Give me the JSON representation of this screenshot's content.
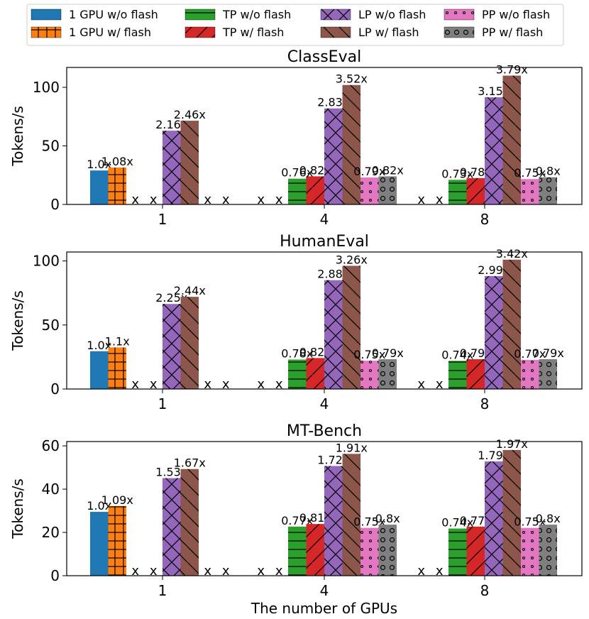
{
  "legend": {
    "items": [
      {
        "key": "gpu1_noflash",
        "label": "1 GPU w/o flash"
      },
      {
        "key": "gpu1_flash",
        "label": "1 GPU w/ flash"
      },
      {
        "key": "tp_noflash",
        "label": "TP w/o flash"
      },
      {
        "key": "tp_flash",
        "label": "TP w/ flash"
      },
      {
        "key": "lp_noflash",
        "label": "LP w/o flash"
      },
      {
        "key": "lp_flash",
        "label": "LP w/ flash"
      },
      {
        "key": "pp_noflash",
        "label": "PP w/o flash"
      },
      {
        "key": "pp_flash",
        "label": "PP w/ flash"
      }
    ]
  },
  "colors": {
    "gpu1_noflash": "#1f77b4",
    "gpu1_flash": "#ff7f0e",
    "tp_noflash": "#2ca02c",
    "tp_flash": "#d62728",
    "lp_noflash": "#9467bd",
    "lp_flash": "#8c564b",
    "pp_noflash": "#e377c2",
    "pp_flash": "#7f7f7f"
  },
  "patterns": {
    "gpu1_noflash": "none",
    "gpu1_flash": "plus-grid",
    "tp_noflash": "horizontal-lines",
    "tp_flash": "forward-slash",
    "lp_noflash": "crosshatch",
    "lp_flash": "back-slash",
    "pp_noflash": "small-dots",
    "pp_flash": "large-circles"
  },
  "missing_marker": "x",
  "chart_data": [
    {
      "type": "bar",
      "title": "ClassEval",
      "ylabel": "Tokens/s",
      "xlabel": "",
      "categories": [
        "1",
        "4",
        "8"
      ],
      "ylim": [
        0,
        117
      ],
      "yticks": [
        0,
        50,
        100
      ],
      "series": [
        {
          "key": "gpu1_noflash",
          "name": "1 GPU w/o flash",
          "values": [
            29,
            null,
            null
          ],
          "labels": [
            "1.0x",
            null,
            null
          ]
        },
        {
          "key": "gpu1_flash",
          "name": "1 GPU w/ flash",
          "values": [
            31.5,
            null,
            null
          ],
          "labels": [
            "1.08x",
            null,
            null
          ]
        },
        {
          "key": "tp_noflash",
          "name": "TP w/o flash",
          "values": [
            null,
            22,
            21
          ],
          "labels": [
            null,
            "0.76x",
            "0.73x"
          ]
        },
        {
          "key": "tp_flash",
          "name": "TP w/ flash",
          "values": [
            null,
            24,
            22.5
          ],
          "labels": [
            null,
            "0.82x",
            "0.78x"
          ]
        },
        {
          "key": "lp_noflash",
          "name": "LP w/o flash",
          "values": [
            63,
            82,
            91.5
          ],
          "labels": [
            "2.16x",
            "2.83x",
            "3.15x"
          ]
        },
        {
          "key": "lp_flash",
          "name": "LP w/ flash",
          "values": [
            71.5,
            102,
            110
          ],
          "labels": [
            "2.46x",
            "3.52x",
            "3.79x"
          ]
        },
        {
          "key": "pp_noflash",
          "name": "PP w/o flash",
          "values": [
            null,
            23,
            21.7
          ],
          "labels": [
            null,
            "0.79x",
            "0.75x"
          ]
        },
        {
          "key": "pp_flash",
          "name": "PP w/ flash",
          "values": [
            null,
            24,
            23.2
          ],
          "labels": [
            null,
            "0.82x",
            "0.8x"
          ]
        }
      ]
    },
    {
      "type": "bar",
      "title": "HumanEval",
      "ylabel": "Tokens/s",
      "xlabel": "",
      "categories": [
        "1",
        "4",
        "8"
      ],
      "ylim": [
        0,
        107
      ],
      "yticks": [
        0,
        50,
        100
      ],
      "series": [
        {
          "key": "gpu1_noflash",
          "name": "1 GPU w/o flash",
          "values": [
            29.5,
            null,
            null
          ],
          "labels": [
            "1.0x",
            null,
            null
          ]
        },
        {
          "key": "gpu1_flash",
          "name": "1 GPU w/ flash",
          "values": [
            32.5,
            null,
            null
          ],
          "labels": [
            "1.1x",
            null,
            null
          ]
        },
        {
          "key": "tp_noflash",
          "name": "TP w/o flash",
          "values": [
            null,
            23,
            22
          ],
          "labels": [
            null,
            "0.78x",
            "0.74x"
          ]
        },
        {
          "key": "tp_flash",
          "name": "TP w/ flash",
          "values": [
            null,
            24.2,
            23.3
          ],
          "labels": [
            null,
            "0.82x",
            "0.79x"
          ]
        },
        {
          "key": "lp_noflash",
          "name": "LP w/o flash",
          "values": [
            66.4,
            85,
            88.2
          ],
          "labels": [
            "2.25x",
            "2.88x",
            "2.99x"
          ]
        },
        {
          "key": "lp_flash",
          "name": "LP w/ flash",
          "values": [
            72,
            96.2,
            101
          ],
          "labels": [
            "2.44x",
            "3.26x",
            "3.42x"
          ]
        },
        {
          "key": "pp_noflash",
          "name": "PP w/o flash",
          "values": [
            null,
            22.1,
            22.7
          ],
          "labels": [
            null,
            "0.75x",
            "0.77x"
          ]
        },
        {
          "key": "pp_flash",
          "name": "PP w/ flash",
          "values": [
            null,
            23.3,
            23.3
          ],
          "labels": [
            null,
            "0.79x",
            "0.79x"
          ]
        }
      ]
    },
    {
      "type": "bar",
      "title": "MT-Bench",
      "ylabel": "Tokens/s",
      "xlabel": "The number of GPUs",
      "categories": [
        "1",
        "4",
        "8"
      ],
      "ylim": [
        0,
        62
      ],
      "yticks": [
        0,
        20,
        40,
        60
      ],
      "series": [
        {
          "key": "gpu1_noflash",
          "name": "1 GPU w/o flash",
          "values": [
            29.5,
            null,
            null
          ],
          "labels": [
            "1.0x",
            null,
            null
          ]
        },
        {
          "key": "gpu1_flash",
          "name": "1 GPU w/ flash",
          "values": [
            32.2,
            null,
            null
          ],
          "labels": [
            "1.09x",
            null,
            null
          ]
        },
        {
          "key": "tp_noflash",
          "name": "TP w/o flash",
          "values": [
            null,
            22.7,
            21.8
          ],
          "labels": [
            null,
            "0.77x",
            "0.74x"
          ]
        },
        {
          "key": "tp_flash",
          "name": "TP w/ flash",
          "values": [
            null,
            23.9,
            22.7
          ],
          "labels": [
            null,
            "0.81x",
            "0.77x"
          ]
        },
        {
          "key": "lp_noflash",
          "name": "LP w/o flash",
          "values": [
            45.1,
            50.7,
            52.8
          ],
          "labels": [
            "1.53x",
            "1.72x",
            "1.79x"
          ]
        },
        {
          "key": "lp_flash",
          "name": "LP w/ flash",
          "values": [
            49.3,
            56.3,
            58.1
          ],
          "labels": [
            "1.67x",
            "1.91x",
            "1.97x"
          ]
        },
        {
          "key": "pp_noflash",
          "name": "PP w/o flash",
          "values": [
            null,
            22.1,
            22.1
          ],
          "labels": [
            null,
            "0.75x",
            "0.75x"
          ]
        },
        {
          "key": "pp_flash",
          "name": "PP w/ flash",
          "values": [
            null,
            23.6,
            23.6
          ],
          "labels": [
            null,
            "0.8x",
            "0.8x"
          ]
        }
      ]
    }
  ]
}
